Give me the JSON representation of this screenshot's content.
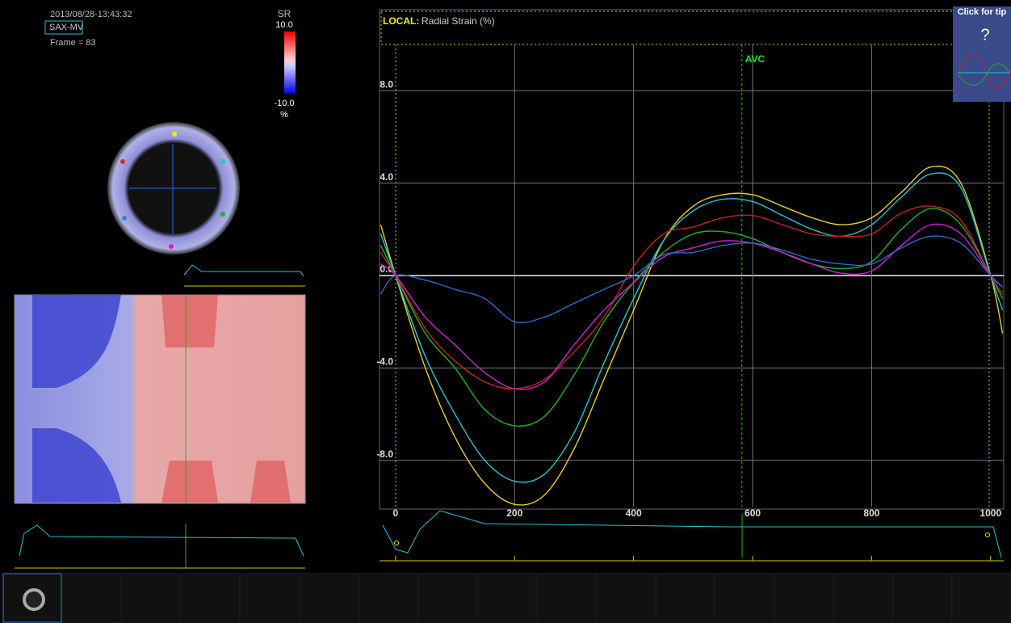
{
  "header": {
    "timestamp": "2013/08/28-13:43:32",
    "view": "SAX-MV",
    "frame": "Frame = 83"
  },
  "colorbar": {
    "title": "SR",
    "max": "10.0",
    "min": "-10.0",
    "unit": "%"
  },
  "tip": {
    "label": "Click for tip",
    "icon": "?"
  },
  "chart_data": {
    "type": "line",
    "panel_label": "LOCAL:",
    "title": "Radial Strain (%)",
    "x": [
      -25,
      0,
      50,
      100,
      150,
      200,
      250,
      300,
      350,
      400,
      450,
      500,
      550,
      600,
      650,
      700,
      750,
      800,
      850,
      900,
      950,
      1000,
      1020
    ],
    "series": [
      {
        "color": "#e6d21e",
        "values": [
          2.2,
          0,
          -4.0,
          -7.0,
          -9.0,
          -9.9,
          -9.5,
          -7.5,
          -4.5,
          -1.5,
          1.5,
          3.0,
          3.5,
          3.5,
          3.0,
          2.5,
          2.2,
          2.5,
          3.6,
          4.7,
          4.0,
          0,
          -2.5
        ]
      },
      {
        "color": "#1ec8d2",
        "values": [
          1.8,
          0,
          -3.5,
          -6.0,
          -8.0,
          -8.9,
          -8.6,
          -6.8,
          -3.8,
          -1.0,
          1.5,
          2.8,
          3.3,
          3.2,
          2.6,
          2.0,
          1.7,
          2.2,
          3.4,
          4.4,
          3.8,
          0,
          -1.5
        ]
      },
      {
        "color": "#1eb41e",
        "values": [
          1.3,
          0,
          -2.5,
          -4.0,
          -5.8,
          -6.5,
          -6.1,
          -4.3,
          -2.0,
          -0.3,
          1.0,
          1.8,
          1.9,
          1.6,
          1.0,
          0.5,
          0.3,
          0.6,
          2.0,
          2.9,
          2.2,
          0,
          -1.0
        ]
      },
      {
        "color": "#c81e1e",
        "values": [
          1.0,
          0,
          -2.3,
          -3.7,
          -4.6,
          -4.9,
          -4.5,
          -3.3,
          -1.8,
          0.4,
          1.8,
          2.1,
          2.5,
          2.6,
          2.2,
          1.8,
          1.7,
          1.8,
          2.7,
          3.0,
          2.4,
          0,
          -0.8
        ]
      },
      {
        "color": "#d21ed2",
        "values": [
          0.5,
          0,
          -1.8,
          -3.0,
          -4.2,
          -4.9,
          -4.6,
          -3.0,
          -1.5,
          -0.3,
          0.8,
          1.2,
          1.5,
          1.4,
          1.0,
          0.5,
          0.1,
          0.2,
          1.3,
          2.2,
          1.8,
          0,
          -0.5
        ]
      },
      {
        "color": "#2a6ad2",
        "values": [
          -0.8,
          0,
          -0.2,
          -0.6,
          -1.0,
          -2.0,
          -1.8,
          -1.2,
          -0.6,
          0.0,
          0.9,
          1.0,
          1.3,
          1.4,
          1.1,
          0.7,
          0.5,
          0.5,
          1.2,
          1.7,
          1.4,
          0,
          -0.5
        ]
      }
    ],
    "xlim": [
      -27,
      1022
    ],
    "ylim": [
      -10,
      10
    ],
    "xticks": [
      0,
      200,
      400,
      600,
      800,
      1000
    ],
    "yticks": [
      {
        "value": 8,
        "label": "8.0"
      },
      {
        "value": 4,
        "label": "4.0"
      },
      {
        "value": 0,
        "label": "0.0"
      },
      {
        "value": -4,
        "label": "-4.0"
      },
      {
        "value": -8,
        "label": "-8.0"
      }
    ],
    "grid": true,
    "annotations": [
      {
        "text": "AVC",
        "x": 582
      }
    ]
  }
}
